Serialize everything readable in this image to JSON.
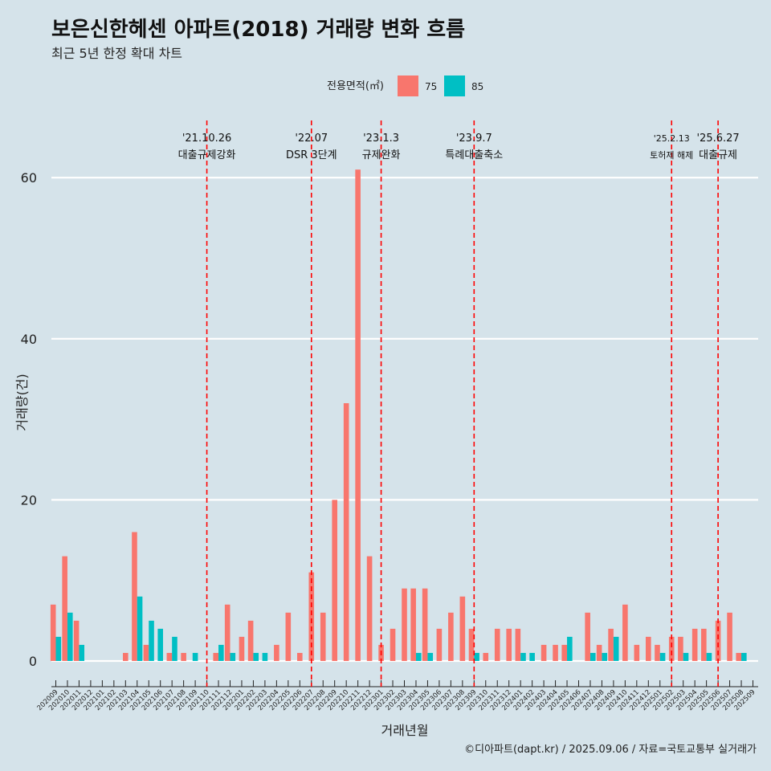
{
  "title": "보은신한헤센 아파트(2018) 거래량 변화 흐름",
  "subtitle": "최근 5년 한정 확대 차트",
  "caption": "©디아파트(dapt.kr) / 2025.09.06 / 자료=국토교통부 실거래가",
  "colors": {
    "background": "#d5e3ea",
    "s75": "#f8766d",
    "s85": "#00bfc4",
    "vline": "#ff0000",
    "grid": "#ffffff"
  },
  "chart_data": {
    "type": "bar",
    "title": "보은신한헤센 아파트(2018) 거래량 변화 흐름",
    "subtitle": "최근 5년 한정 확대 차트",
    "xlabel": "거래년월",
    "ylabel": "거래량(건)",
    "ylim": [
      0,
      66
    ],
    "yticks": [
      0,
      20,
      40,
      60
    ],
    "grid": true,
    "legend": {
      "title": "전용면적(㎡)",
      "position": "top"
    },
    "categories": [
      "202009",
      "202010",
      "202011",
      "202012",
      "202101",
      "202102",
      "202103",
      "202104",
      "202105",
      "202106",
      "202107",
      "202108",
      "202109",
      "202110",
      "202111",
      "202112",
      "202201",
      "202202",
      "202203",
      "202204",
      "202205",
      "202206",
      "202207",
      "202208",
      "202209",
      "202210",
      "202211",
      "202212",
      "202301",
      "202302",
      "202303",
      "202304",
      "202305",
      "202306",
      "202307",
      "202308",
      "202309",
      "202310",
      "202311",
      "202312",
      "202401",
      "202402",
      "202403",
      "202404",
      "202405",
      "202406",
      "202407",
      "202408",
      "202409",
      "202410",
      "202411",
      "202412",
      "202501",
      "202502",
      "202503",
      "202504",
      "202505",
      "202506",
      "202507",
      "202508",
      "202509"
    ],
    "series": [
      {
        "name": "75",
        "values": [
          7,
          13,
          5,
          0,
          0,
          0,
          1,
          16,
          2,
          0,
          1,
          1,
          0,
          0,
          1,
          7,
          3,
          5,
          0,
          2,
          6,
          1,
          11,
          6,
          20,
          32,
          61,
          13,
          2,
          4,
          9,
          9,
          9,
          4,
          6,
          8,
          4,
          1,
          4,
          4,
          4,
          0,
          2,
          2,
          2,
          0,
          6,
          2,
          4,
          7,
          2,
          3,
          2,
          3,
          3,
          4,
          4,
          5,
          6,
          1,
          0
        ]
      },
      {
        "name": "85",
        "values": [
          3,
          6,
          2,
          0,
          0,
          0,
          0,
          8,
          5,
          4,
          3,
          0,
          1,
          0,
          2,
          1,
          0,
          1,
          1,
          0,
          0,
          0,
          0,
          0,
          0,
          0,
          0,
          0,
          0,
          0,
          0,
          1,
          1,
          0,
          0,
          0,
          1,
          0,
          0,
          0,
          1,
          1,
          0,
          0,
          3,
          0,
          1,
          1,
          3,
          0,
          0,
          0,
          1,
          0,
          1,
          0,
          1,
          0,
          0,
          1,
          0
        ]
      }
    ],
    "annotations": [
      {
        "date": "'21.10.26",
        "label": "대출규제강화",
        "x": "202110"
      },
      {
        "date": "'22.07",
        "label": "DSR 3단계",
        "x": "202207"
      },
      {
        "date": "'23.1.3",
        "label": "규제완화",
        "x": "202301"
      },
      {
        "date": "'23.9.7",
        "label": "특례대출축소",
        "x": "202309"
      },
      {
        "date": "'25.2.13",
        "label": "토허제 해제",
        "x": "202502"
      },
      {
        "date": "'25.6.27",
        "label": "대출규제",
        "x": "202506"
      }
    ]
  }
}
